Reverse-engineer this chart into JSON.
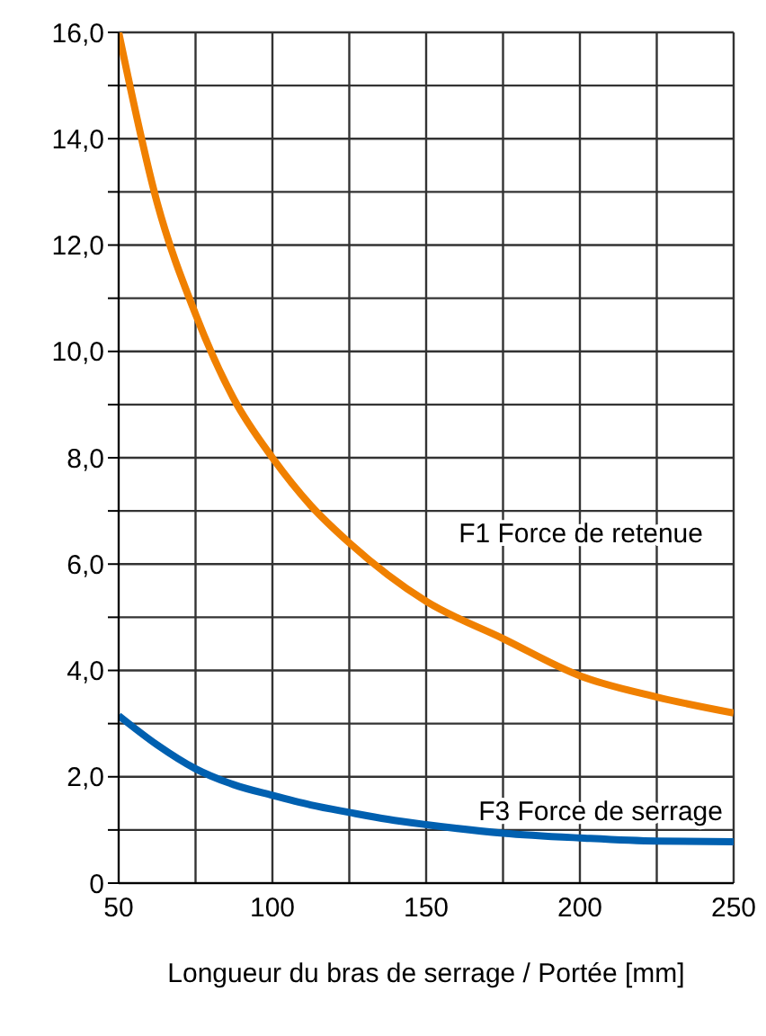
{
  "chart_data": {
    "type": "line",
    "xlabel": "Longueur du bras de serrage / Portée [mm]",
    "x": [
      50,
      62.5,
      75,
      87.5,
      100,
      112.5,
      125,
      137.5,
      150,
      175,
      200,
      225,
      250
    ],
    "series": [
      {
        "name": "F1 Force de retenue",
        "color": "#f08000",
        "values": [
          16,
          12.8,
          10.7,
          9.1,
          8.0,
          7.1,
          6.4,
          5.8,
          5.3,
          4.6,
          3.9,
          3.5,
          3.2
        ]
      },
      {
        "name": "F3 Force de serrage",
        "color": "#0060b0",
        "values": [
          3.15,
          2.6,
          2.15,
          1.85,
          1.65,
          1.47,
          1.33,
          1.2,
          1.1,
          0.94,
          0.85,
          0.79,
          0.78
        ]
      }
    ],
    "xlim": [
      50,
      250
    ],
    "xticks": [
      50,
      {
        "value": 75,
        "label": null
      },
      100,
      {
        "value": 125,
        "label": null
      },
      150,
      {
        "value": 175,
        "label": null
      },
      200,
      {
        "value": 225,
        "label": null
      },
      250
    ],
    "ylim": [
      0,
      16
    ],
    "yticks": [
      0,
      {
        "value": 1,
        "label": null
      },
      {
        "value": 2,
        "label": "2,0"
      },
      {
        "value": 3,
        "label": null
      },
      {
        "value": 4,
        "label": "4,0"
      },
      {
        "value": 5,
        "label": null
      },
      {
        "value": 6,
        "label": "6,0"
      },
      {
        "value": 7,
        "label": null
      },
      {
        "value": 8,
        "label": "8,0"
      },
      {
        "value": 9,
        "label": null
      },
      {
        "value": 10,
        "label": "10,0"
      },
      {
        "value": 11,
        "label": null
      },
      {
        "value": 12,
        "label": "12,0"
      },
      {
        "value": 13,
        "label": null
      },
      {
        "value": 14,
        "label": "14,0"
      },
      {
        "value": 15,
        "label": null
      },
      {
        "value": 16,
        "label": "16,0"
      }
    ],
    "grid": true,
    "legend": false,
    "marker": "none",
    "line_style": "solid"
  }
}
